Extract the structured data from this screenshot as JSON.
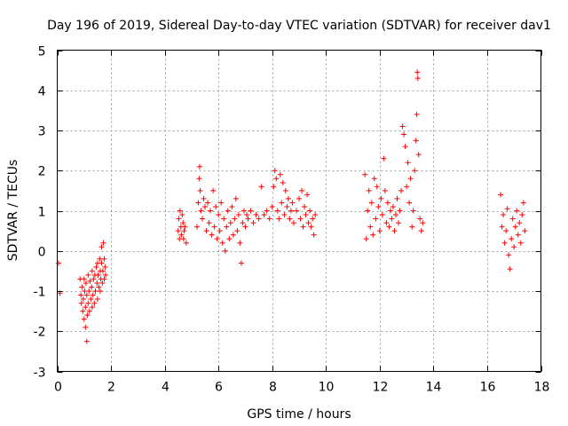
{
  "chart_data": {
    "type": "scatter",
    "title": "Day 196 of 2019, Sidereal Day-to-day VTEC variation (SDTVAR) for receiver dav1",
    "xlabel": "GPS time / hours",
    "ylabel": "SDTVAR / TECUs",
    "xlim": [
      0,
      18
    ],
    "ylim": [
      -3,
      5
    ],
    "xticks": [
      0,
      2,
      4,
      6,
      8,
      10,
      12,
      14,
      16,
      18
    ],
    "yticks": [
      -3,
      -2,
      -1,
      0,
      1,
      2,
      3,
      4,
      5
    ],
    "grid": true,
    "marker": "+",
    "color": "#ff0000",
    "series": [
      {
        "name": "SDTVAR",
        "points": [
          [
            0.05,
            -0.3
          ],
          [
            0.1,
            -1.05
          ],
          [
            0.85,
            -0.7
          ],
          [
            0.88,
            -1.1
          ],
          [
            0.9,
            -1.3
          ],
          [
            0.92,
            -0.9
          ],
          [
            0.95,
            -1.5
          ],
          [
            0.97,
            -1.2
          ],
          [
            1.0,
            -1.7
          ],
          [
            1.0,
            -0.7
          ],
          [
            1.02,
            -1.0
          ],
          [
            1.05,
            -1.9
          ],
          [
            1.05,
            -1.4
          ],
          [
            1.07,
            -0.8
          ],
          [
            1.1,
            -2.25
          ],
          [
            1.1,
            -1.1
          ],
          [
            1.12,
            -1.6
          ],
          [
            1.15,
            -0.6
          ],
          [
            1.15,
            -1.3
          ],
          [
            1.18,
            -1.0
          ],
          [
            1.2,
            -1.5
          ],
          [
            1.22,
            -0.75
          ],
          [
            1.25,
            -1.2
          ],
          [
            1.28,
            -0.9
          ],
          [
            1.3,
            -1.4
          ],
          [
            1.3,
            -0.5
          ],
          [
            1.33,
            -1.1
          ],
          [
            1.35,
            -0.7
          ],
          [
            1.38,
            -1.3
          ],
          [
            1.4,
            -0.6
          ],
          [
            1.42,
            -1.0
          ],
          [
            1.45,
            -0.4
          ],
          [
            1.48,
            -0.8
          ],
          [
            1.5,
            -0.3
          ],
          [
            1.5,
            -1.2
          ],
          [
            1.52,
            -0.6
          ],
          [
            1.55,
            -0.9
          ],
          [
            1.58,
            -0.2
          ],
          [
            1.6,
            -0.5
          ],
          [
            1.6,
            -1.0
          ],
          [
            1.62,
            -0.7
          ],
          [
            1.65,
            0.1
          ],
          [
            1.65,
            -0.3
          ],
          [
            1.68,
            -0.8
          ],
          [
            1.7,
            -0.5
          ],
          [
            1.72,
            0.2
          ],
          [
            1.75,
            -0.2
          ],
          [
            1.75,
            -0.7
          ],
          [
            1.78,
            -0.4
          ],
          [
            1.8,
            -0.6
          ],
          [
            4.5,
            0.5
          ],
          [
            4.52,
            0.8
          ],
          [
            4.55,
            0.3
          ],
          [
            4.57,
            1.0
          ],
          [
            4.6,
            0.6
          ],
          [
            4.62,
            0.4
          ],
          [
            4.65,
            0.9
          ],
          [
            4.68,
            0.7
          ],
          [
            4.7,
            0.3
          ],
          [
            4.72,
            0.5
          ],
          [
            4.75,
            0.6
          ],
          [
            4.8,
            0.2
          ],
          [
            5.2,
            0.6
          ],
          [
            5.25,
            1.2
          ],
          [
            5.28,
            1.8
          ],
          [
            5.3,
            2.1
          ],
          [
            5.32,
            1.5
          ],
          [
            5.35,
            1.0
          ],
          [
            5.4,
            0.8
          ],
          [
            5.45,
            1.3
          ],
          [
            5.5,
            1.1
          ],
          [
            5.55,
            0.5
          ],
          [
            5.6,
            1.2
          ],
          [
            5.65,
            0.7
          ],
          [
            5.7,
            1.0
          ],
          [
            5.75,
            0.4
          ],
          [
            5.8,
            1.5
          ],
          [
            5.85,
            0.6
          ],
          [
            5.9,
            1.1
          ],
          [
            5.95,
            0.3
          ],
          [
            6.0,
            0.9
          ],
          [
            6.05,
            0.5
          ],
          [
            6.1,
            1.2
          ],
          [
            6.15,
            0.2
          ],
          [
            6.2,
            0.8
          ],
          [
            6.25,
            0.0
          ],
          [
            6.3,
            0.6
          ],
          [
            6.35,
            1.0
          ],
          [
            6.4,
            0.3
          ],
          [
            6.45,
            0.7
          ],
          [
            6.5,
            1.1
          ],
          [
            6.55,
            0.4
          ],
          [
            6.6,
            0.8
          ],
          [
            6.65,
            1.3
          ],
          [
            6.7,
            0.5
          ],
          [
            6.75,
            0.9
          ],
          [
            6.8,
            0.2
          ],
          [
            6.85,
            -0.3
          ],
          [
            6.9,
            0.7
          ],
          [
            6.95,
            1.0
          ],
          [
            7.0,
            0.6
          ],
          [
            7.05,
            0.9
          ],
          [
            7.1,
            0.8
          ],
          [
            7.2,
            1.0
          ],
          [
            7.3,
            0.7
          ],
          [
            7.4,
            0.9
          ],
          [
            7.5,
            0.8
          ],
          [
            7.6,
            1.6
          ],
          [
            7.7,
            0.9
          ],
          [
            7.8,
            1.0
          ],
          [
            7.9,
            0.8
          ],
          [
            8.0,
            1.1
          ],
          [
            8.05,
            1.6
          ],
          [
            8.1,
            2.0
          ],
          [
            8.15,
            1.8
          ],
          [
            8.2,
            1.0
          ],
          [
            8.25,
            0.8
          ],
          [
            8.3,
            1.9
          ],
          [
            8.35,
            1.2
          ],
          [
            8.4,
            1.7
          ],
          [
            8.45,
            0.9
          ],
          [
            8.5,
            1.5
          ],
          [
            8.55,
            1.1
          ],
          [
            8.6,
            1.3
          ],
          [
            8.65,
            0.8
          ],
          [
            8.7,
            1.0
          ],
          [
            8.75,
            1.2
          ],
          [
            8.8,
            0.7
          ],
          [
            8.9,
            1.0
          ],
          [
            9.0,
            1.3
          ],
          [
            9.05,
            0.8
          ],
          [
            9.1,
            1.5
          ],
          [
            9.15,
            0.6
          ],
          [
            9.2,
            1.1
          ],
          [
            9.25,
            0.9
          ],
          [
            9.3,
            1.4
          ],
          [
            9.35,
            0.7
          ],
          [
            9.4,
            1.0
          ],
          [
            9.45,
            0.6
          ],
          [
            9.5,
            0.8
          ],
          [
            9.55,
            0.4
          ],
          [
            9.6,
            0.9
          ],
          [
            11.45,
            1.9
          ],
          [
            11.5,
            0.3
          ],
          [
            11.55,
            1.0
          ],
          [
            11.6,
            1.5
          ],
          [
            11.65,
            0.6
          ],
          [
            11.7,
            1.2
          ],
          [
            11.75,
            0.4
          ],
          [
            11.8,
            1.8
          ],
          [
            11.85,
            0.8
          ],
          [
            11.9,
            1.6
          ],
          [
            11.95,
            1.1
          ],
          [
            12.0,
            0.5
          ],
          [
            12.05,
            1.3
          ],
          [
            12.1,
            0.9
          ],
          [
            12.15,
            2.3
          ],
          [
            12.2,
            1.5
          ],
          [
            12.25,
            0.7
          ],
          [
            12.3,
            1.2
          ],
          [
            12.35,
            0.6
          ],
          [
            12.4,
            1.0
          ],
          [
            12.45,
            0.8
          ],
          [
            12.5,
            1.1
          ],
          [
            12.55,
            0.5
          ],
          [
            12.6,
            0.9
          ],
          [
            12.65,
            1.3
          ],
          [
            12.7,
            0.7
          ],
          [
            12.75,
            1.0
          ],
          [
            12.8,
            1.5
          ],
          [
            12.85,
            3.1
          ],
          [
            12.9,
            2.9
          ],
          [
            12.95,
            2.6
          ],
          [
            13.0,
            1.6
          ],
          [
            13.05,
            2.2
          ],
          [
            13.1,
            1.2
          ],
          [
            13.15,
            1.8
          ],
          [
            13.2,
            0.6
          ],
          [
            13.25,
            1.0
          ],
          [
            13.3,
            2.0
          ],
          [
            13.35,
            2.75
          ],
          [
            13.38,
            3.4
          ],
          [
            13.4,
            4.45
          ],
          [
            13.42,
            4.3
          ],
          [
            13.45,
            2.4
          ],
          [
            13.5,
            0.8
          ],
          [
            13.55,
            0.5
          ],
          [
            13.6,
            0.7
          ],
          [
            16.5,
            1.4
          ],
          [
            16.55,
            0.6
          ],
          [
            16.6,
            0.9
          ],
          [
            16.65,
            0.2
          ],
          [
            16.7,
            0.5
          ],
          [
            16.75,
            1.05
          ],
          [
            16.8,
            -0.1
          ],
          [
            16.85,
            -0.45
          ],
          [
            16.9,
            0.3
          ],
          [
            16.95,
            0.8
          ],
          [
            17.0,
            0.1
          ],
          [
            17.05,
            0.6
          ],
          [
            17.1,
            1.0
          ],
          [
            17.15,
            0.4
          ],
          [
            17.2,
            0.7
          ],
          [
            17.25,
            0.2
          ],
          [
            17.3,
            0.9
          ],
          [
            17.35,
            1.2
          ],
          [
            17.4,
            0.5
          ]
        ]
      }
    ]
  }
}
